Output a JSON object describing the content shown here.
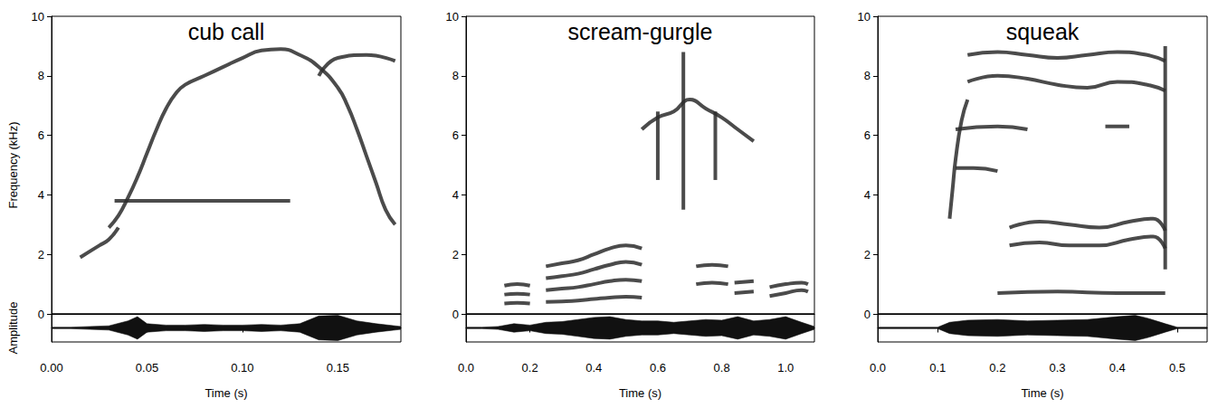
{
  "chart_data": [
    {
      "type": "line",
      "title": "cub call",
      "color": "#2b2b2b",
      "grid": false,
      "x_label": "Time (s)",
      "y_label": "Frequency (kHz)",
      "xlim": [
        0,
        0.183
      ],
      "xticks": [
        {
          "value": 0,
          "label": "0.00"
        },
        {
          "value": 0.05,
          "label": "0.05"
        },
        {
          "value": 0.1,
          "label": "0.10"
        },
        {
          "value": 0.15,
          "label": "0.15"
        }
      ],
      "ylim": [
        0,
        10
      ],
      "yticks": [
        0,
        2,
        4,
        6,
        8,
        10
      ],
      "series": [
        {
          "x": [
            0.015,
            0.02,
            0.025,
            0.03,
            0.035
          ],
          "values": [
            1.9,
            2.1,
            2.3,
            2.5,
            2.9
          ]
        },
        {
          "x": [
            0.03,
            0.035,
            0.04,
            0.045,
            0.05,
            0.055,
            0.06,
            0.065,
            0.07,
            0.08,
            0.09,
            0.1,
            0.11,
            0.12,
            0.13,
            0.14,
            0.15,
            0.155,
            0.16,
            0.165,
            0.17,
            0.175,
            0.18
          ],
          "values": [
            2.9,
            3.3,
            3.9,
            4.6,
            5.4,
            6.2,
            6.9,
            7.4,
            7.7,
            8.0,
            8.3,
            8.6,
            8.85,
            8.9,
            8.7,
            8.3,
            7.6,
            7.0,
            6.2,
            5.3,
            4.4,
            3.5,
            3.0
          ]
        },
        {
          "x": [
            0.033,
            0.05,
            0.08,
            0.1,
            0.125
          ],
          "values": [
            3.8,
            3.8,
            3.8,
            3.8,
            3.8
          ]
        },
        {
          "x": [
            0.14,
            0.15,
            0.165,
            0.18
          ],
          "values": [
            8.0,
            8.6,
            8.7,
            8.5
          ]
        }
      ],
      "amplitude": {
        "label": "Amplitude",
        "tick_labels": false,
        "ylim": [
          -1,
          1
        ],
        "x": [
          0,
          0.01,
          0.02,
          0.03,
          0.04,
          0.045,
          0.05,
          0.06,
          0.07,
          0.08,
          0.09,
          0.1,
          0.11,
          0.12,
          0.13,
          0.14,
          0.15,
          0.16,
          0.17,
          0.183
        ],
        "values": [
          0.05,
          0.05,
          0.1,
          0.15,
          0.5,
          0.8,
          0.3,
          0.2,
          0.2,
          0.25,
          0.2,
          0.2,
          0.25,
          0.2,
          0.3,
          0.85,
          0.9,
          0.5,
          0.3,
          0.1
        ]
      }
    },
    {
      "type": "line",
      "title": "scream-gurgle",
      "color": "#2b2b2b",
      "grid": false,
      "x_label": "Time (s)",
      "xlim": [
        0,
        1.09
      ],
      "xticks": [
        {
          "value": 0,
          "label": "0.0"
        },
        {
          "value": 0.2,
          "label": "0.2"
        },
        {
          "value": 0.4,
          "label": "0.4"
        },
        {
          "value": 0.6,
          "label": "0.6"
        },
        {
          "value": 0.8,
          "label": "0.8"
        },
        {
          "value": 1,
          "label": "1.0"
        }
      ],
      "ylim": [
        0,
        10
      ],
      "yticks": [
        0,
        2,
        4,
        6,
        8,
        10
      ],
      "series": [
        {
          "x": [
            0.12,
            0.16,
            0.2
          ],
          "values": [
            0.35,
            0.37,
            0.35
          ]
        },
        {
          "x": [
            0.12,
            0.16,
            0.2
          ],
          "values": [
            0.65,
            0.68,
            0.65
          ]
        },
        {
          "x": [
            0.12,
            0.16,
            0.2
          ],
          "values": [
            0.95,
            1.0,
            0.95
          ]
        },
        {
          "x": [
            0.25,
            0.3,
            0.35,
            0.4,
            0.45,
            0.5,
            0.55
          ],
          "values": [
            0.4,
            0.42,
            0.45,
            0.5,
            0.55,
            0.58,
            0.55
          ]
        },
        {
          "x": [
            0.25,
            0.3,
            0.35,
            0.4,
            0.45,
            0.5,
            0.55
          ],
          "values": [
            0.8,
            0.85,
            0.9,
            1.0,
            1.1,
            1.15,
            1.1
          ]
        },
        {
          "x": [
            0.25,
            0.3,
            0.35,
            0.4,
            0.45,
            0.5,
            0.55
          ],
          "values": [
            1.2,
            1.27,
            1.35,
            1.5,
            1.65,
            1.75,
            1.65
          ]
        },
        {
          "x": [
            0.25,
            0.3,
            0.35,
            0.4,
            0.45,
            0.5,
            0.55
          ],
          "values": [
            1.6,
            1.7,
            1.8,
            2.0,
            2.2,
            2.3,
            2.2
          ]
        },
        {
          "x": [
            0.72,
            0.77,
            0.82
          ],
          "values": [
            1.0,
            1.05,
            1.0
          ]
        },
        {
          "x": [
            0.72,
            0.77,
            0.82
          ],
          "values": [
            1.6,
            1.65,
            1.6
          ]
        },
        {
          "x": [
            0.84,
            0.9
          ],
          "values": [
            0.7,
            0.75
          ]
        },
        {
          "x": [
            0.84,
            0.9
          ],
          "values": [
            1.05,
            1.1
          ]
        },
        {
          "x": [
            0.95,
            1.0,
            1.05,
            1.07
          ],
          "values": [
            0.6,
            0.7,
            0.8,
            0.75
          ]
        },
        {
          "x": [
            0.95,
            1.0,
            1.05,
            1.07
          ],
          "values": [
            0.9,
            1.0,
            1.05,
            1.0
          ]
        },
        {
          "x": [
            0.55,
            0.6,
            0.65,
            0.7,
            0.75,
            0.8,
            0.85,
            0.9
          ],
          "values": [
            6.2,
            6.6,
            6.8,
            7.2,
            6.9,
            6.6,
            6.2,
            5.8
          ]
        },
        {
          "x": [
            0.6,
            0.6
          ],
          "values": [
            4.5,
            6.8
          ]
        },
        {
          "x": [
            0.68,
            0.68
          ],
          "values": [
            3.5,
            8.8
          ]
        },
        {
          "x": [
            0.78,
            0.78
          ],
          "values": [
            4.5,
            6.8
          ]
        }
      ],
      "amplitude": {
        "tick_labels": false,
        "ylim": [
          -1,
          1
        ],
        "x": [
          0,
          0.05,
          0.1,
          0.15,
          0.2,
          0.25,
          0.3,
          0.35,
          0.4,
          0.45,
          0.5,
          0.55,
          0.6,
          0.65,
          0.7,
          0.75,
          0.8,
          0.85,
          0.9,
          0.95,
          1.0,
          1.05,
          1.09
        ],
        "values": [
          0.05,
          0.05,
          0.1,
          0.3,
          0.2,
          0.4,
          0.45,
          0.6,
          0.75,
          0.8,
          0.6,
          0.5,
          0.5,
          0.4,
          0.5,
          0.6,
          0.55,
          0.8,
          0.5,
          0.6,
          0.8,
          0.4,
          0.1
        ]
      }
    },
    {
      "type": "line",
      "title": "squeak",
      "color": "#2b2b2b",
      "grid": false,
      "x_label": "Time (s)",
      "xlim": [
        0,
        0.55
      ],
      "xticks": [
        {
          "value": 0,
          "label": "0.0"
        },
        {
          "value": 0.1,
          "label": "0.1"
        },
        {
          "value": 0.2,
          "label": "0.2"
        },
        {
          "value": 0.3,
          "label": "0.3"
        },
        {
          "value": 0.4,
          "label": "0.4"
        },
        {
          "value": 0.5,
          "label": "0.5"
        }
      ],
      "ylim": [
        0,
        10
      ],
      "yticks": [
        0,
        2,
        4,
        6,
        8,
        10
      ],
      "series": [
        {
          "x": [
            0.12,
            0.125,
            0.13,
            0.14,
            0.15
          ],
          "values": [
            3.2,
            4.2,
            5.2,
            6.5,
            7.2
          ]
        },
        {
          "x": [
            0.15,
            0.2,
            0.25,
            0.3,
            0.35,
            0.4,
            0.45,
            0.48
          ],
          "values": [
            8.7,
            8.8,
            8.7,
            8.6,
            8.7,
            8.8,
            8.7,
            8.5
          ]
        },
        {
          "x": [
            0.15,
            0.2,
            0.25,
            0.3,
            0.35,
            0.4,
            0.45,
            0.48
          ],
          "values": [
            7.8,
            8.0,
            7.9,
            7.7,
            7.6,
            7.8,
            7.7,
            7.5
          ]
        },
        {
          "x": [
            0.13,
            0.2,
            0.25
          ],
          "values": [
            6.2,
            6.3,
            6.2
          ]
        },
        {
          "x": [
            0.38,
            0.42
          ],
          "values": [
            6.3,
            6.3
          ]
        },
        {
          "x": [
            0.13,
            0.16,
            0.2
          ],
          "values": [
            4.9,
            4.9,
            4.8
          ]
        },
        {
          "x": [
            0.22,
            0.27,
            0.32,
            0.37,
            0.42,
            0.46,
            0.48
          ],
          "values": [
            2.3,
            2.4,
            2.3,
            2.3,
            2.5,
            2.6,
            2.2
          ]
        },
        {
          "x": [
            0.22,
            0.27,
            0.32,
            0.37,
            0.42,
            0.46,
            0.48
          ],
          "values": [
            2.9,
            3.1,
            3.0,
            2.9,
            3.1,
            3.2,
            2.8
          ]
        },
        {
          "x": [
            0.2,
            0.3,
            0.4,
            0.48
          ],
          "values": [
            0.7,
            0.75,
            0.7,
            0.7
          ]
        },
        {
          "x": [
            0.48,
            0.48
          ],
          "values": [
            1.5,
            9.0
          ]
        }
      ],
      "amplitude": {
        "tick_labels": false,
        "ylim": [
          -1,
          1
        ],
        "x": [
          0,
          0.05,
          0.1,
          0.12,
          0.15,
          0.2,
          0.25,
          0.3,
          0.35,
          0.4,
          0.43,
          0.45,
          0.48,
          0.5,
          0.55
        ],
        "values": [
          0.05,
          0.05,
          0.05,
          0.4,
          0.55,
          0.6,
          0.5,
          0.55,
          0.6,
          0.8,
          0.9,
          0.7,
          0.3,
          0.05,
          0.05
        ]
      }
    }
  ]
}
